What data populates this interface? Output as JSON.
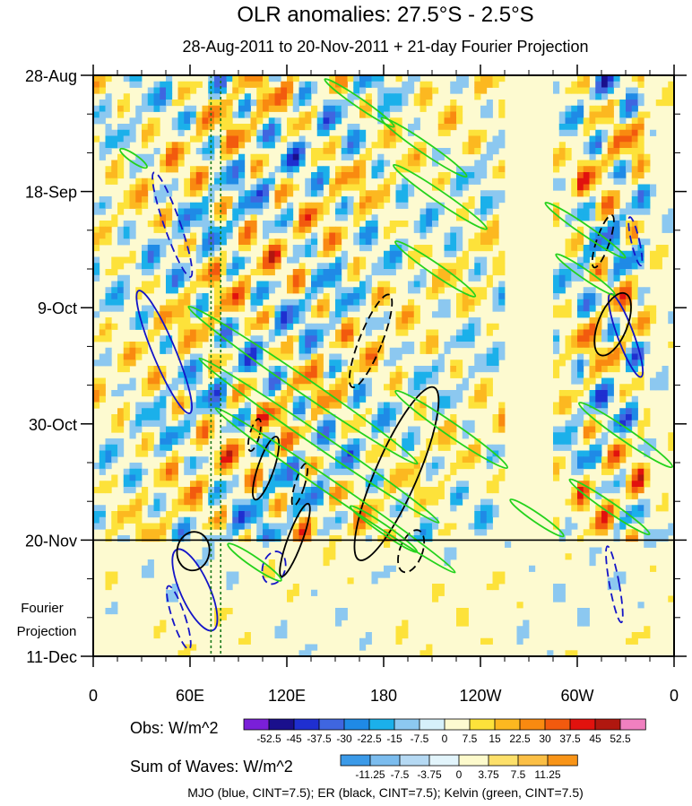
{
  "chart_data": {
    "type": "heatmap",
    "title": "OLR anomalies: 27.5°S - 2.5°S",
    "subtitle": "28-Aug-2011 to 20-Nov-2011 + 21-day Fourier Projection",
    "x_ticks": [
      {
        "lon": 0,
        "label": "0"
      },
      {
        "lon": 60,
        "label": "60E"
      },
      {
        "lon": 120,
        "label": "120E"
      },
      {
        "lon": 180,
        "label": "180"
      },
      {
        "lon": 240,
        "label": "120W"
      },
      {
        "lon": 300,
        "label": "60W"
      },
      {
        "lon": 360,
        "label": "0"
      }
    ],
    "y_ticks": [
      {
        "day": 0,
        "label": "28-Aug"
      },
      {
        "day": 21,
        "label": "18-Sep"
      },
      {
        "day": 42,
        "label": "9-Oct"
      },
      {
        "day": 63,
        "label": "30-Oct"
      },
      {
        "day": 84,
        "label": "20-Nov"
      },
      {
        "day": 105,
        "label": "11-Dec"
      }
    ],
    "xlim": [
      0,
      360
    ],
    "ylim": [
      0,
      105
    ],
    "observation_end_day": 84,
    "projection_label": [
      "Fourier",
      "Projection"
    ],
    "dashed_reference_lons": [
      73,
      79
    ],
    "obs_colorbar": {
      "label": "Obs: W/m^2",
      "levels": [
        "-52.5",
        "-45",
        "-37.5",
        "-30",
        "-22.5",
        "-15",
        "-7.5",
        "0",
        "7.5",
        "15",
        "22.5",
        "30",
        "37.5",
        "45",
        "52.5"
      ],
      "colors": [
        "#7a1fd8",
        "#1a0f8c",
        "#1f2fd0",
        "#3f66e0",
        "#1f8ae6",
        "#1bb0ea",
        "#8cc8f0",
        "#d6f0fa",
        "#fdfad0",
        "#fde23a",
        "#fcb820",
        "#f98a10",
        "#f25a0e",
        "#e1120e",
        "#b0170f",
        "#f080c0"
      ]
    },
    "waves_colorbar": {
      "label": "Sum of Waves: W/m^2",
      "levels": [
        "-11.25",
        "-7.5",
        "-3.75",
        "0",
        "3.75",
        "7.5",
        "11.25"
      ],
      "colors": [
        "#3b9ae8",
        "#7bbcee",
        "#b5d9f3",
        "#e2f4fb",
        "#fdfacc",
        "#fde06a",
        "#fbbf45",
        "#f89418"
      ]
    },
    "caption": "MJO (blue, CINT=7.5); ER (black, CINT=7.5); Kelvin (green, CINT=7.5)",
    "series": [
      {
        "name": "MJO",
        "color": "#1414c8",
        "contours": [
          {
            "lon": 44,
            "day": 50,
            "rlon": 7,
            "rday": 12,
            "tilt": 2.5,
            "sign": 1
          },
          {
            "lon": 49,
            "day": 27,
            "rlon": 5,
            "rday": 10,
            "tilt": 1.6,
            "sign": -1
          },
          {
            "lon": 63,
            "day": 93,
            "rlon": 9,
            "rday": 8,
            "tilt": 3.2,
            "sign": 1
          },
          {
            "lon": 53,
            "day": 98,
            "rlon": 4,
            "rday": 6,
            "tilt": 1.4,
            "sign": -1
          },
          {
            "lon": 112,
            "day": 89,
            "rlon": 7,
            "rday": 3,
            "tilt": -1.0,
            "sign": -1
          },
          {
            "lon": 330,
            "day": 47,
            "rlon": 5,
            "rday": 8,
            "tilt": 1.8,
            "sign": 1
          },
          {
            "lon": 336,
            "day": 30,
            "rlon": 2.5,
            "rday": 4.5,
            "tilt": 0.8,
            "sign": -1
          },
          {
            "lon": 323,
            "day": 92,
            "rlon": 3,
            "rday": 7,
            "tilt": 0.6,
            "sign": -1
          }
        ]
      },
      {
        "name": "ER",
        "color": "#000000",
        "contours": [
          {
            "lon": 188,
            "day": 72,
            "rlon": 13,
            "rday": 17,
            "tilt": -2.8,
            "sign": 1
          },
          {
            "lon": 107,
            "day": 71,
            "rlon": 5,
            "rday": 6,
            "tilt": -1.5,
            "sign": 1
          },
          {
            "lon": 125,
            "day": 84,
            "rlon": 4.5,
            "rday": 7,
            "tilt": -1.8,
            "sign": 1
          },
          {
            "lon": 62,
            "day": 86,
            "rlon": 10,
            "rday": 3.5,
            "tilt": -0.5,
            "sign": 1
          },
          {
            "lon": 172,
            "day": 48,
            "rlon": 7,
            "rday": 9,
            "tilt": -2.2,
            "sign": -1
          },
          {
            "lon": 322,
            "day": 45,
            "rlon": 9,
            "rday": 6,
            "tilt": -2.2,
            "sign": 1
          },
          {
            "lon": 316,
            "day": 30,
            "rlon": 4,
            "rday": 5,
            "tilt": -1.5,
            "sign": -1
          },
          {
            "lon": 197,
            "day": 86,
            "rlon": 7,
            "rday": 4,
            "tilt": -1.8,
            "sign": -1
          },
          {
            "lon": 100,
            "day": 65,
            "rlon": 3,
            "rday": 3,
            "tilt": -1.0,
            "sign": -1
          },
          {
            "lon": 128,
            "day": 74,
            "rlon": 3,
            "rday": 4,
            "tilt": -1.2,
            "sign": -1
          }
        ]
      },
      {
        "name": "Kelvin",
        "color": "#24d21c",
        "contours": [
          {
            "lon": 130,
            "day": 56,
            "rlon": 86,
            "rday": 1.4,
            "tilt": -0.11,
            "sign": 1
          },
          {
            "lon": 140,
            "day": 66,
            "rlon": 90,
            "rday": 1.2,
            "tilt": -0.11,
            "sign": 1
          },
          {
            "lon": 150,
            "day": 75,
            "rlon": 90,
            "rday": 1.2,
            "tilt": -0.11,
            "sign": 1
          },
          {
            "lon": 222,
            "day": 64,
            "rlon": 42,
            "rday": 1.2,
            "tilt": -0.11,
            "sign": 1
          },
          {
            "lon": 205,
            "day": 13,
            "rlon": 32,
            "rday": 1.0,
            "tilt": -0.11,
            "sign": 1
          },
          {
            "lon": 215,
            "day": 22,
            "rlon": 35,
            "rday": 1.0,
            "tilt": -0.11,
            "sign": 1
          },
          {
            "lon": 212,
            "day": 35,
            "rlon": 30,
            "rday": 1.0,
            "tilt": -0.11,
            "sign": 1
          },
          {
            "lon": 165,
            "day": 5,
            "rlon": 26,
            "rday": 0.8,
            "tilt": -0.11,
            "sign": 1
          },
          {
            "lon": 25,
            "day": 15,
            "rlon": 10,
            "rday": 0.7,
            "tilt": -0.11,
            "sign": 1
          },
          {
            "lon": 330,
            "day": 65,
            "rlon": 35,
            "rday": 1.1,
            "tilt": -0.11,
            "sign": 1
          },
          {
            "lon": 320,
            "day": 78,
            "rlon": 30,
            "rday": 0.9,
            "tilt": -0.11,
            "sign": 1
          },
          {
            "lon": 275,
            "day": 80,
            "rlon": 20,
            "rday": 0.8,
            "tilt": -0.11,
            "sign": 1
          },
          {
            "lon": 305,
            "day": 28,
            "rlon": 30,
            "rday": 0.9,
            "tilt": -0.11,
            "sign": 1
          },
          {
            "lon": 305,
            "day": 36,
            "rlon": 22,
            "rday": 0.8,
            "tilt": -0.11,
            "sign": 1
          },
          {
            "lon": 100,
            "day": 88,
            "rlon": 20,
            "rday": 0.9,
            "tilt": -0.11,
            "sign": 1
          },
          {
            "lon": 180,
            "day": 82,
            "rlon": 25,
            "rday": 0.8,
            "tilt": -0.11,
            "sign": 1
          }
        ]
      }
    ]
  }
}
